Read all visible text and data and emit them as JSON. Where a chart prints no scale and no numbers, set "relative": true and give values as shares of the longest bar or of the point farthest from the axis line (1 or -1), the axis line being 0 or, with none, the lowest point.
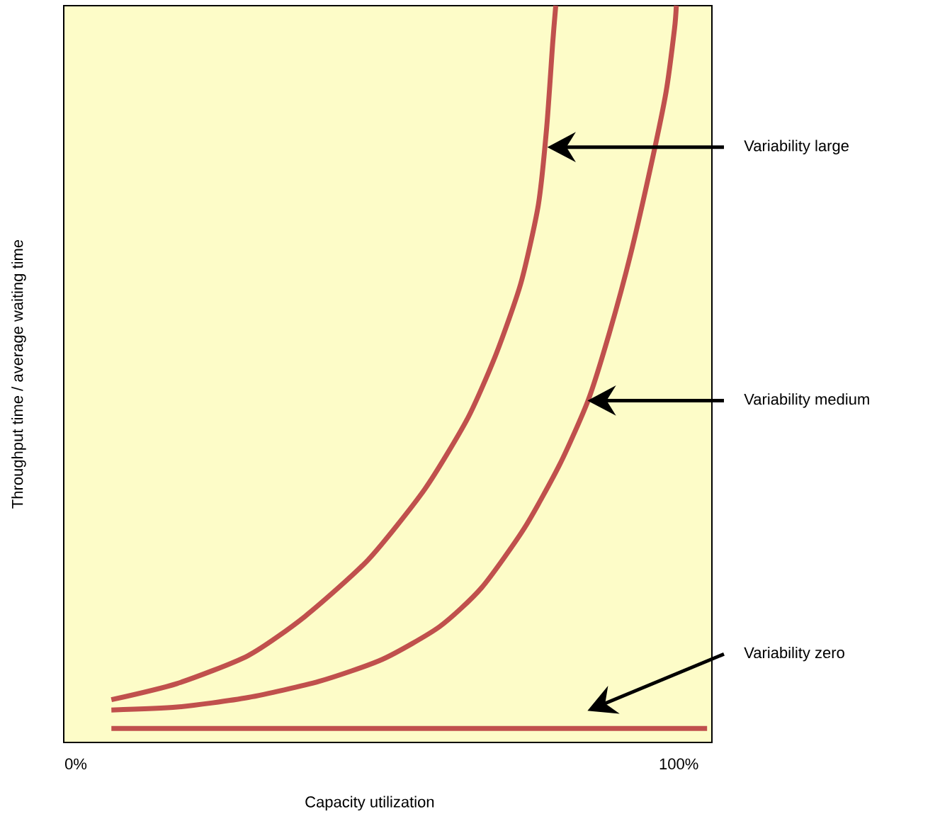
{
  "chart_data": {
    "type": "line",
    "relative": true,
    "xlabel": "Capacity utilization",
    "ylabel": "Throughput time / average waiting time",
    "xlim": [
      -2,
      105.5
    ],
    "xticks": [
      {
        "value": 0,
        "label": "0%"
      },
      {
        "value": 100,
        "label": "100%"
      }
    ],
    "marker": "none",
    "line_style": "solid",
    "series": [
      {
        "color": "#c0504d",
        "x": [
          5.9,
          16.8,
          28.6,
          38.0,
          48.5,
          57.9,
          65.0,
          69.7,
          73.8,
          76.7,
          78.1,
          79.1,
          79.6
        ],
        "values": [
          0.058,
          0.08,
          0.118,
          0.171,
          0.248,
          0.344,
          0.44,
          0.527,
          0.623,
          0.729,
          0.835,
          0.95,
          1.0
        ]
      },
      {
        "color": "#c0504d",
        "x": [
          5.9,
          16.8,
          28.6,
          40.4,
          50.9,
          60.3,
          67.3,
          74.4,
          80.3,
          85.0,
          88.5,
          92.0,
          95.5,
          97.9,
          99.3,
          99.6
        ],
        "values": [
          0.044,
          0.048,
          0.061,
          0.083,
          0.113,
          0.157,
          0.21,
          0.291,
          0.378,
          0.465,
          0.556,
          0.662,
          0.787,
          0.883,
          0.969,
          1.0
        ]
      },
      {
        "color": "#c0504d",
        "x": [
          5.9,
          104.7
        ],
        "values": [
          0.019,
          0.019
        ]
      }
    ],
    "annotations": [
      "Variability large",
      "Variability medium",
      "Variability zero"
    ]
  }
}
